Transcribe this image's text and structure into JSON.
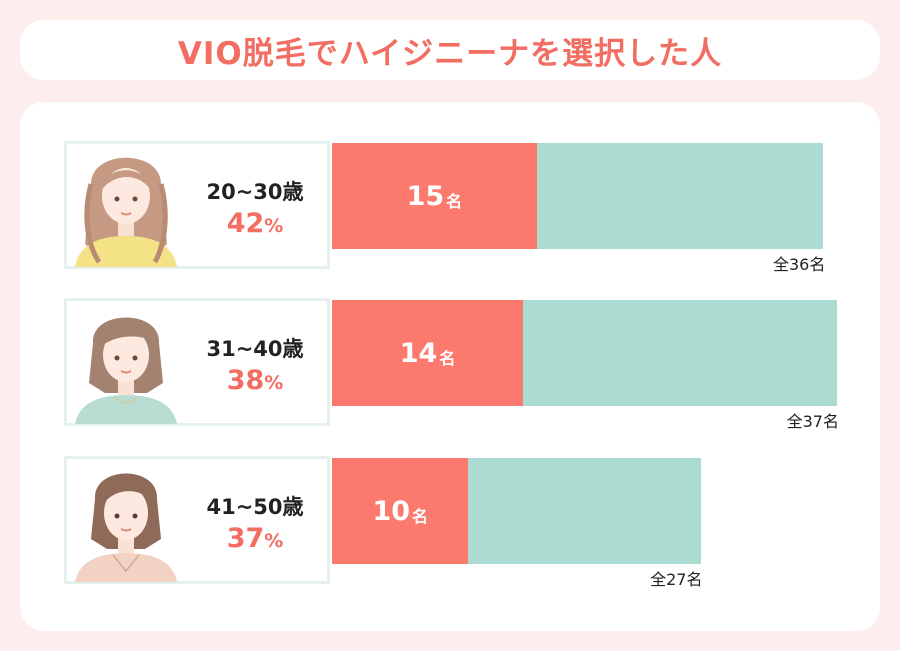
{
  "title": "VIO脱毛でハイジニーナを選択した人",
  "colors": {
    "accent": "#f26d62",
    "bar_value": "#fb7a6d",
    "bar_total": "#acdbd1",
    "page_bg": "#fdeeed",
    "card_border": "#e4f1ee"
  },
  "rows": [
    {
      "age": "20~30歳",
      "percent": "42",
      "percent_sign": "%",
      "count_num": "15",
      "count_unit": "名",
      "total_label": "全36名"
    },
    {
      "age": "31~40歳",
      "percent": "38",
      "percent_sign": "%",
      "count_num": "14",
      "count_unit": "名",
      "total_label": "全37名"
    },
    {
      "age": "41~50歳",
      "percent": "37",
      "percent_sign": "%",
      "count_num": "10",
      "count_unit": "名",
      "total_label": "全27名"
    }
  ],
  "chart_data": {
    "type": "bar",
    "title": "VIO脱毛でハイジニーナを選択した人",
    "orientation": "horizontal",
    "stacked_overlay": true,
    "categories": [
      "20~30歳",
      "31~40歳",
      "41~50歳"
    ],
    "series": [
      {
        "values": [
          15,
          14,
          10
        ]
      },
      {
        "values": [
          36,
          37,
          27
        ]
      }
    ],
    "percent_labels": [
      "42%",
      "38%",
      "37%"
    ],
    "count_labels": [
      "15名",
      "14名",
      "10名"
    ],
    "total_labels": [
      "全36名",
      "全37名",
      "全27名"
    ],
    "xlim": [
      0,
      37
    ],
    "grid": false,
    "legend": "none"
  }
}
